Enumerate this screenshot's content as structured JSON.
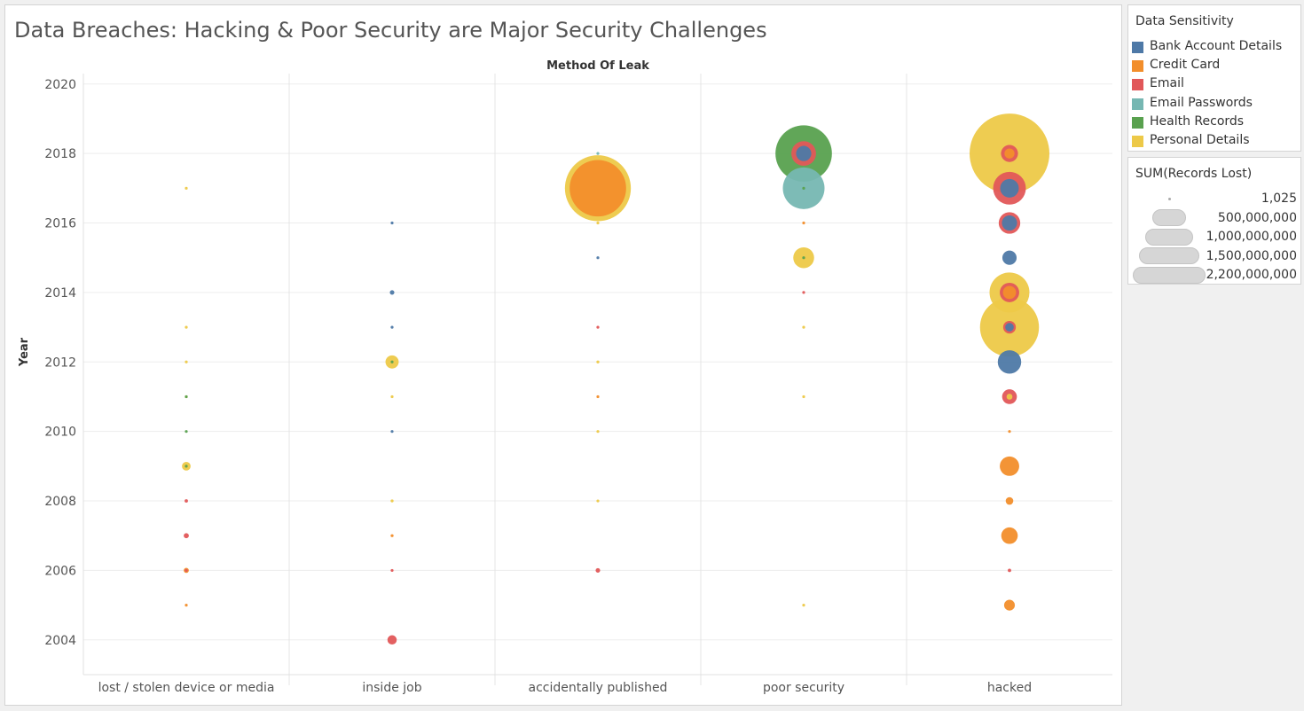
{
  "chart_data": {
    "type": "scatter",
    "title": "Data Breaches: Hacking & Poor Security are Major Security Challenges",
    "column_header": "Method Of Leak",
    "ylabel": "Year",
    "xlabel": "",
    "ylim": [
      2003,
      2020.3
    ],
    "y_ticks": [
      2004,
      2006,
      2008,
      2010,
      2012,
      2014,
      2016,
      2018,
      2020
    ],
    "categories": [
      "lost / stolen device or media",
      "inside job",
      "accidentally published",
      "poor security",
      "hacked"
    ],
    "grid": true,
    "size_encoding": "SUM(Records Lost)",
    "max_records": 2200000000,
    "points": [
      {
        "method": "lost / stolen device or media",
        "year": 2017,
        "sensitivity": "Personal Details",
        "records": 2000000
      },
      {
        "method": "lost / stolen device or media",
        "year": 2013,
        "sensitivity": "Personal Details",
        "records": 2000000
      },
      {
        "method": "lost / stolen device or media",
        "year": 2012,
        "sensitivity": "Personal Details",
        "records": 1200000
      },
      {
        "method": "lost / stolen device or media",
        "year": 2011,
        "sensitivity": "Personal Details",
        "records": 2500000
      },
      {
        "method": "lost / stolen device or media",
        "year": 2011,
        "sensitivity": "Health Records",
        "records": 1500000
      },
      {
        "method": "lost / stolen device or media",
        "year": 2010,
        "sensitivity": "Health Records",
        "records": 1600000
      },
      {
        "method": "lost / stolen device or media",
        "year": 2009,
        "sensitivity": "Personal Details",
        "records": 26000000
      },
      {
        "method": "lost / stolen device or media",
        "year": 2009,
        "sensitivity": "Health Records",
        "records": 600000
      },
      {
        "method": "lost / stolen device or media",
        "year": 2008,
        "sensitivity": "Email",
        "records": 4000000
      },
      {
        "method": "lost / stolen device or media",
        "year": 2007,
        "sensitivity": "Email",
        "records": 9000000
      },
      {
        "method": "lost / stolen device or media",
        "year": 2006,
        "sensitivity": "Credit Card",
        "records": 9000000
      },
      {
        "method": "lost / stolen device or media",
        "year": 2006,
        "sensitivity": "Email",
        "records": 3000000
      },
      {
        "method": "lost / stolen device or media",
        "year": 2005,
        "sensitivity": "Credit Card",
        "records": 1500000
      },
      {
        "method": "inside job",
        "year": 2016,
        "sensitivity": "Bank Account Details",
        "records": 1000000
      },
      {
        "method": "inside job",
        "year": 2014,
        "sensitivity": "Bank Account Details",
        "records": 7000000
      },
      {
        "method": "inside job",
        "year": 2013,
        "sensitivity": "Bank Account Details",
        "records": 800000
      },
      {
        "method": "inside job",
        "year": 2012,
        "sensitivity": "Personal Details",
        "records": 60000000
      },
      {
        "method": "inside job",
        "year": 2012,
        "sensitivity": "Health Records",
        "records": 700000
      },
      {
        "method": "inside job",
        "year": 2011,
        "sensitivity": "Personal Details",
        "records": 500000
      },
      {
        "method": "inside job",
        "year": 2010,
        "sensitivity": "Bank Account Details",
        "records": 800000
      },
      {
        "method": "inside job",
        "year": 2008,
        "sensitivity": "Personal Details",
        "records": 3000000
      },
      {
        "method": "inside job",
        "year": 2007,
        "sensitivity": "Credit Card",
        "records": 3000000
      },
      {
        "method": "inside job",
        "year": 2006,
        "sensitivity": "Email",
        "records": 500000
      },
      {
        "method": "inside job",
        "year": 2004,
        "sensitivity": "Email",
        "records": 30000000
      },
      {
        "method": "accidentally published",
        "year": 2018,
        "sensitivity": "Email Passwords",
        "records": 800000
      },
      {
        "method": "accidentally published",
        "year": 2017,
        "sensitivity": "Personal Details",
        "records": 1500000000
      },
      {
        "method": "accidentally published",
        "year": 2017,
        "sensitivity": "Credit Card",
        "records": 1100000000
      },
      {
        "method": "accidentally published",
        "year": 2016,
        "sensitivity": "Personal Details",
        "records": 700000
      },
      {
        "method": "accidentally published",
        "year": 2015,
        "sensitivity": "Bank Account Details",
        "records": 700000
      },
      {
        "method": "accidentally published",
        "year": 2013,
        "sensitivity": "Email",
        "records": 2500000
      },
      {
        "method": "accidentally published",
        "year": 2012,
        "sensitivity": "Personal Details",
        "records": 3000000
      },
      {
        "method": "accidentally published",
        "year": 2011,
        "sensitivity": "Credit Card",
        "records": 1200000
      },
      {
        "method": "accidentally published",
        "year": 2010,
        "sensitivity": "Personal Details",
        "records": 500000
      },
      {
        "method": "accidentally published",
        "year": 2008,
        "sensitivity": "Personal Details",
        "records": 1000000
      },
      {
        "method": "accidentally published",
        "year": 2006,
        "sensitivity": "Email",
        "records": 7000000
      },
      {
        "method": "poor security",
        "year": 2018,
        "sensitivity": "Health Records",
        "records": 1100000000
      },
      {
        "method": "poor security",
        "year": 2018,
        "sensitivity": "Email",
        "records": 210000000
      },
      {
        "method": "poor security",
        "year": 2018,
        "sensitivity": "Bank Account Details",
        "records": 80000000
      },
      {
        "method": "poor security",
        "year": 2017,
        "sensitivity": "Email Passwords",
        "records": 600000000
      },
      {
        "method": "poor security",
        "year": 2017,
        "sensitivity": "Health Records",
        "records": 300000
      },
      {
        "method": "poor security",
        "year": 2016,
        "sensitivity": "Credit Card",
        "records": 700000
      },
      {
        "method": "poor security",
        "year": 2015,
        "sensitivity": "Personal Details",
        "records": 150000000
      },
      {
        "method": "poor security",
        "year": 2015,
        "sensitivity": "Health Records",
        "records": 500000
      },
      {
        "method": "poor security",
        "year": 2014,
        "sensitivity": "Email",
        "records": 1000000
      },
      {
        "method": "poor security",
        "year": 2013,
        "sensitivity": "Personal Details",
        "records": 600000
      },
      {
        "method": "poor security",
        "year": 2011,
        "sensitivity": "Personal Details",
        "records": 600000
      },
      {
        "method": "poor security",
        "year": 2005,
        "sensitivity": "Personal Details",
        "records": 600000
      },
      {
        "method": "hacked",
        "year": 2018,
        "sensitivity": "Personal Details",
        "records": 2200000000
      },
      {
        "method": "hacked",
        "year": 2018,
        "sensitivity": "Email",
        "records": 100000000
      },
      {
        "method": "hacked",
        "year": 2018,
        "sensitivity": "Credit Card",
        "records": 35000000
      },
      {
        "method": "hacked",
        "year": 2017,
        "sensitivity": "Email",
        "records": 370000000
      },
      {
        "method": "hacked",
        "year": 2017,
        "sensitivity": "Bank Account Details",
        "records": 120000000
      },
      {
        "method": "hacked",
        "year": 2016,
        "sensitivity": "Email",
        "records": 160000000
      },
      {
        "method": "hacked",
        "year": 2016,
        "sensitivity": "Bank Account Details",
        "records": 80000000
      },
      {
        "method": "hacked",
        "year": 2015,
        "sensitivity": "Bank Account Details",
        "records": 70000000
      },
      {
        "method": "hacked",
        "year": 2014,
        "sensitivity": "Personal Details",
        "records": 550000000
      },
      {
        "method": "hacked",
        "year": 2014,
        "sensitivity": "Email",
        "records": 130000000
      },
      {
        "method": "hacked",
        "year": 2014,
        "sensitivity": "Credit Card",
        "records": 60000000
      },
      {
        "method": "hacked",
        "year": 2013,
        "sensitivity": "Personal Details",
        "records": 1200000000
      },
      {
        "method": "hacked",
        "year": 2013,
        "sensitivity": "Email",
        "records": 55000000
      },
      {
        "method": "hacked",
        "year": 2013,
        "sensitivity": "Bank Account Details",
        "records": 25000000
      },
      {
        "method": "hacked",
        "year": 2012,
        "sensitivity": "Bank Account Details",
        "records": 190000000
      },
      {
        "method": "hacked",
        "year": 2011,
        "sensitivity": "Email",
        "records": 75000000
      },
      {
        "method": "hacked",
        "year": 2011,
        "sensitivity": "Personal Details",
        "records": 12000000
      },
      {
        "method": "hacked",
        "year": 2010,
        "sensitivity": "Credit Card",
        "records": 2500000
      },
      {
        "method": "hacked",
        "year": 2009,
        "sensitivity": "Credit Card",
        "records": 130000000
      },
      {
        "method": "hacked",
        "year": 2008,
        "sensitivity": "Credit Card",
        "records": 20000000
      },
      {
        "method": "hacked",
        "year": 2007,
        "sensitivity": "Credit Card",
        "records": 94000000
      },
      {
        "method": "hacked",
        "year": 2006,
        "sensitivity": "Email",
        "records": 4000000
      },
      {
        "method": "hacked",
        "year": 2005,
        "sensitivity": "Credit Card",
        "records": 40000000
      }
    ]
  },
  "color_legend": {
    "title": "Data Sensitivity",
    "items": [
      {
        "label": "Bank Account Details",
        "color": "#4e79a7"
      },
      {
        "label": "Credit Card",
        "color": "#f28e2b"
      },
      {
        "label": "Email",
        "color": "#e15759"
      },
      {
        "label": "Email Passwords",
        "color": "#76b7b2"
      },
      {
        "label": "Health Records",
        "color": "#59a14f"
      },
      {
        "label": "Personal Details",
        "color": "#edc948"
      }
    ]
  },
  "size_legend": {
    "title": "SUM(Records Lost)",
    "items": [
      {
        "label": "1,025",
        "value": 1025
      },
      {
        "label": "500,000,000",
        "value": 500000000
      },
      {
        "label": "1,000,000,000",
        "value": 1000000000
      },
      {
        "label": "1,500,000,000",
        "value": 1500000000
      },
      {
        "label": "2,200,000,000",
        "value": 2200000000
      }
    ]
  }
}
